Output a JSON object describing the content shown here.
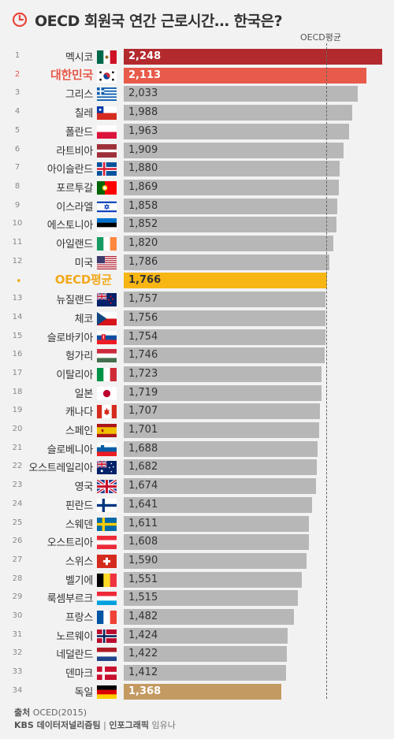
{
  "header": {
    "title": "OECD 회원국 연간 근로시간… 한국은?",
    "avg_label": "OECD평균"
  },
  "colors": {
    "bar_default": "#b7b7b7",
    "bar_top": "#b2292e",
    "bar_korea": "#e85a4a",
    "bar_avg": "#f7b614",
    "bar_min": "#c39a62",
    "korea_text": "#e85a4a",
    "avg_text": "#f2a91c",
    "background": "#f2f2f2"
  },
  "chart_data": {
    "type": "bar",
    "orientation": "horizontal",
    "title": "OECD 회원국 연간 근로시간… 한국은?",
    "average_label": "OECD평균",
    "average_value": 1766,
    "rows": [
      {
        "rank": "1",
        "name": "멕시코",
        "flag": "mexico-flag",
        "value": 2248
      },
      {
        "rank": "2",
        "name": "대한민국",
        "flag": "korea-flag",
        "value": 2113,
        "highlight": "korea"
      },
      {
        "rank": "3",
        "name": "그리스",
        "flag": "greece-flag",
        "value": 2033
      },
      {
        "rank": "4",
        "name": "칠레",
        "flag": "chile-flag",
        "value": 1988
      },
      {
        "rank": "5",
        "name": "폴란드",
        "flag": "poland-flag",
        "value": 1963
      },
      {
        "rank": "6",
        "name": "라트비아",
        "flag": "latvia-flag",
        "value": 1909
      },
      {
        "rank": "7",
        "name": "아이슬란드",
        "flag": "iceland-flag",
        "value": 1880
      },
      {
        "rank": "8",
        "name": "포르투갈",
        "flag": "portugal-flag",
        "value": 1869
      },
      {
        "rank": "9",
        "name": "이스라엘",
        "flag": "israel-flag",
        "value": 1858
      },
      {
        "rank": "10",
        "name": "에스토니아",
        "flag": "estonia-flag",
        "value": 1852
      },
      {
        "rank": "11",
        "name": "아일랜드",
        "flag": "ireland-flag",
        "value": 1820
      },
      {
        "rank": "12",
        "name": "미국",
        "flag": "usa-flag",
        "value": 1786
      },
      {
        "rank": "",
        "name": "OECD평균",
        "flag": "",
        "value": 1766,
        "highlight": "avg"
      },
      {
        "rank": "13",
        "name": "뉴질랜드",
        "flag": "newzealand-flag",
        "value": 1757
      },
      {
        "rank": "14",
        "name": "체코",
        "flag": "czech-flag",
        "value": 1756
      },
      {
        "rank": "15",
        "name": "슬로바키아",
        "flag": "slovakia-flag",
        "value": 1754
      },
      {
        "rank": "16",
        "name": "헝가리",
        "flag": "hungary-flag",
        "value": 1746
      },
      {
        "rank": "17",
        "name": "이탈리아",
        "flag": "italy-flag",
        "value": 1723
      },
      {
        "rank": "18",
        "name": "일본",
        "flag": "japan-flag",
        "value": 1719
      },
      {
        "rank": "19",
        "name": "캐나다",
        "flag": "canada-flag",
        "value": 1707
      },
      {
        "rank": "20",
        "name": "스페인",
        "flag": "spain-flag",
        "value": 1701
      },
      {
        "rank": "21",
        "name": "슬로베니아",
        "flag": "slovenia-flag",
        "value": 1688
      },
      {
        "rank": "22",
        "name": "오스트레일리아",
        "flag": "australia-flag",
        "value": 1682
      },
      {
        "rank": "23",
        "name": "영국",
        "flag": "uk-flag",
        "value": 1674
      },
      {
        "rank": "24",
        "name": "핀란드",
        "flag": "finland-flag",
        "value": 1641
      },
      {
        "rank": "25",
        "name": "스웨덴",
        "flag": "sweden-flag",
        "value": 1611
      },
      {
        "rank": "26",
        "name": "오스트리아",
        "flag": "austria-flag",
        "value": 1608
      },
      {
        "rank": "27",
        "name": "스위스",
        "flag": "switzerland-flag",
        "value": 1590
      },
      {
        "rank": "28",
        "name": "벨기에",
        "flag": "belgium-flag",
        "value": 1551
      },
      {
        "rank": "29",
        "name": "룩셈부르크",
        "flag": "luxembourg-flag",
        "value": 1515
      },
      {
        "rank": "30",
        "name": "프랑스",
        "flag": "france-flag",
        "value": 1482
      },
      {
        "rank": "31",
        "name": "노르웨이",
        "flag": "norway-flag",
        "value": 1424
      },
      {
        "rank": "32",
        "name": "네덜란드",
        "flag": "netherlands-flag",
        "value": 1422
      },
      {
        "rank": "33",
        "name": "덴마크",
        "flag": "denmark-flag",
        "value": 1412
      },
      {
        "rank": "34",
        "name": "독일",
        "flag": "germany-flag",
        "value": 1368,
        "highlight": "min"
      }
    ]
  },
  "footer": {
    "source_label": "출처",
    "source_value": "OCED(2015)",
    "credit_org": "KBS 데이터저널리즘팀",
    "credit_sep": "|",
    "credit_role": "인포그래픽",
    "credit_name": "임유나"
  }
}
